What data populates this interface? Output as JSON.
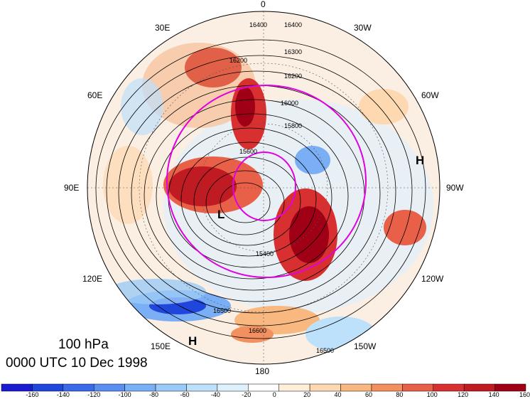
{
  "map": {
    "level_label": "100 hPa",
    "time_label": "0000 UTC 10 Dec 1998",
    "longitude_labels": [
      "0",
      "30W",
      "60W",
      "90W",
      "120W",
      "150W",
      "180",
      "150E",
      "120E",
      "90E",
      "60E",
      "30E"
    ],
    "pressure_centers": [
      {
        "letter": "L"
      },
      {
        "letter": "H"
      },
      {
        "letter": "H"
      }
    ],
    "contour_labels": [
      "16400",
      "16400",
      "16300",
      "16200",
      "16200",
      "16000",
      "15800",
      "15600",
      "15400",
      "16500",
      "16600",
      "16500"
    ],
    "colors": {
      "jet_contour": "#e000e0",
      "contour": "#000000",
      "positive_max": "#a00016",
      "negative_max": "#1d2fd0"
    }
  },
  "colorbar": {
    "labels": [
      "-160",
      "-140",
      "-120",
      "-100",
      "-80",
      "-60",
      "-40",
      "-20",
      "0",
      "20",
      "40",
      "60",
      "80",
      "100",
      "120",
      "140",
      "160"
    ],
    "colors": [
      "#1a1ad0",
      "#2046dc",
      "#3a6ae8",
      "#5a8ef0",
      "#7aaef5",
      "#9ccaf8",
      "#bde0fb",
      "#dff0fd",
      "#ffffff",
      "#ffeed8",
      "#fdd8b0",
      "#f8b880",
      "#f29060",
      "#e86048",
      "#d83030",
      "#c01a22",
      "#a00016"
    ]
  }
}
